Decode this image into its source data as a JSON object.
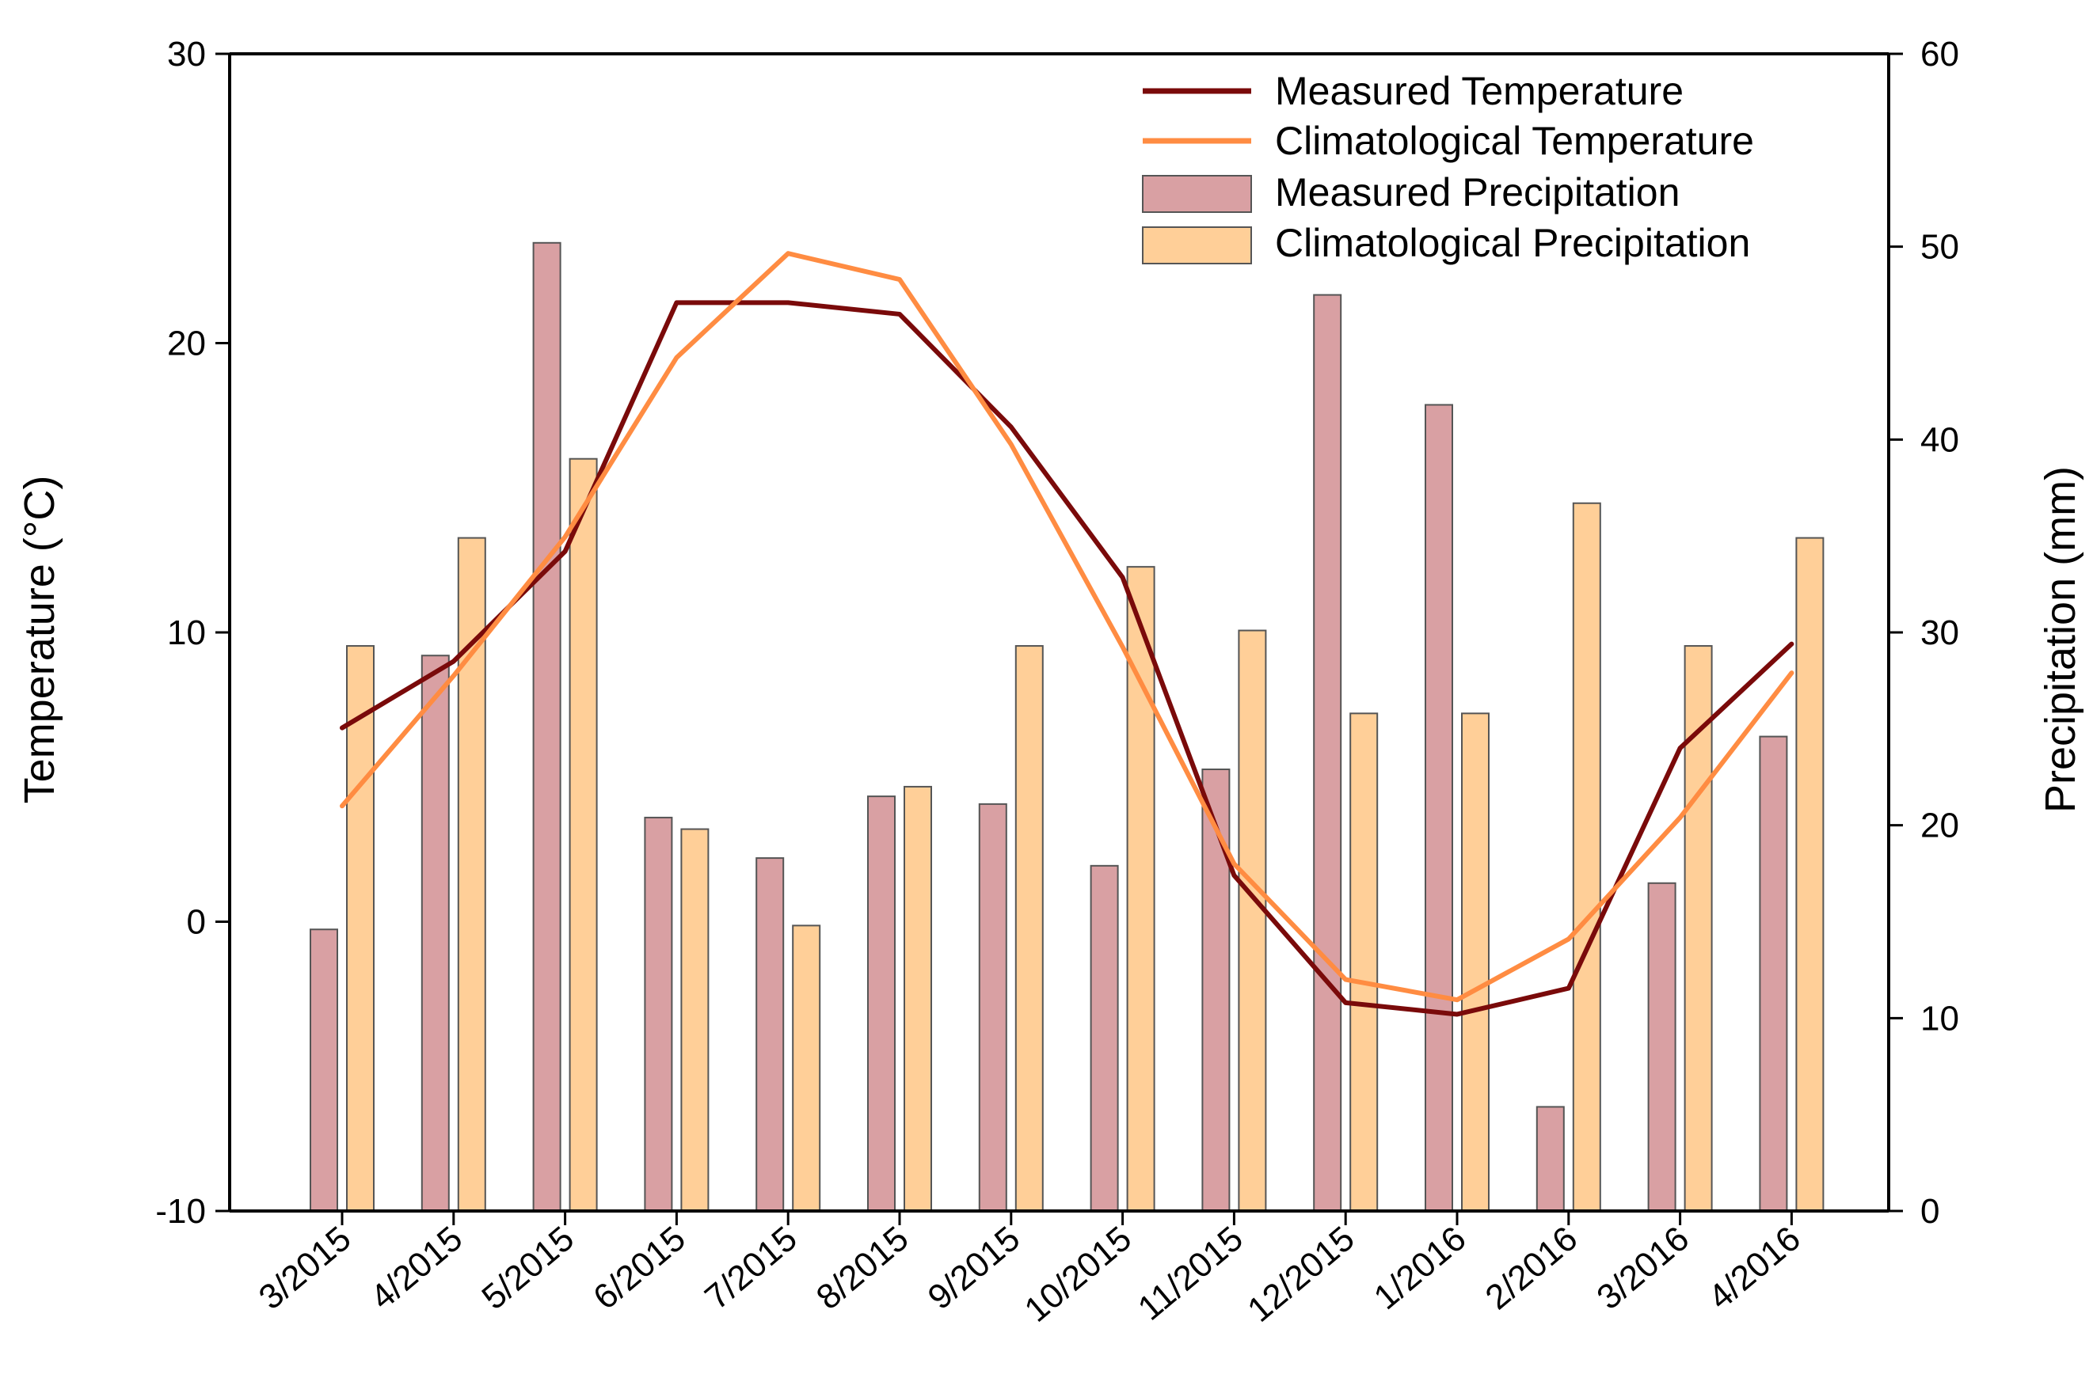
{
  "chart_data": {
    "type": "bar",
    "categories": [
      "3/2015",
      "4/2015",
      "5/2015",
      "6/2015",
      "7/2015",
      "8/2015",
      "9/2015",
      "10/2015",
      "11/2015",
      "12/2015",
      "1/2016",
      "2/2016",
      "3/2016",
      "4/2016"
    ],
    "y_left": {
      "label": "Temperature (°C)",
      "lim": [
        -10,
        30
      ],
      "ticks": [
        -10,
        0,
        10,
        20,
        30
      ]
    },
    "y_right": {
      "label": "Precipitation (mm)",
      "lim": [
        0,
        60
      ],
      "ticks": [
        0,
        10,
        20,
        30,
        40,
        50,
        60
      ]
    },
    "bar_series": [
      {
        "name": "Measured Precipitation",
        "axis": "right",
        "color": "#d9a0a3",
        "values": [
          14.6,
          28.8,
          50.2,
          20.4,
          18.3,
          21.5,
          21.1,
          17.9,
          22.9,
          47.5,
          41.8,
          5.4,
          17.0,
          24.6
        ]
      },
      {
        "name": "Climatological Precipitation",
        "axis": "right",
        "color": "#ffcf98",
        "values": [
          29.3,
          34.9,
          39.0,
          19.8,
          14.8,
          22.0,
          29.3,
          33.4,
          30.1,
          25.8,
          25.8,
          36.7,
          29.3,
          34.9
        ]
      }
    ],
    "line_series": [
      {
        "name": "Measured Temperature",
        "axis": "left",
        "color": "#7a0a0a",
        "values": [
          6.7,
          9.0,
          12.8,
          21.4,
          21.4,
          21.0,
          17.1,
          11.9,
          1.6,
          -2.8,
          -3.2,
          -2.3,
          6.0,
          9.6
        ]
      },
      {
        "name": "Climatological Temperature",
        "axis": "left",
        "color": "#ff8c42",
        "values": [
          4.0,
          8.5,
          13.3,
          19.5,
          23.1,
          22.2,
          16.5,
          9.5,
          2.0,
          -2.0,
          -2.7,
          -0.6,
          3.6,
          8.6
        ]
      }
    ],
    "legend_position": "top-right",
    "grid": false
  }
}
